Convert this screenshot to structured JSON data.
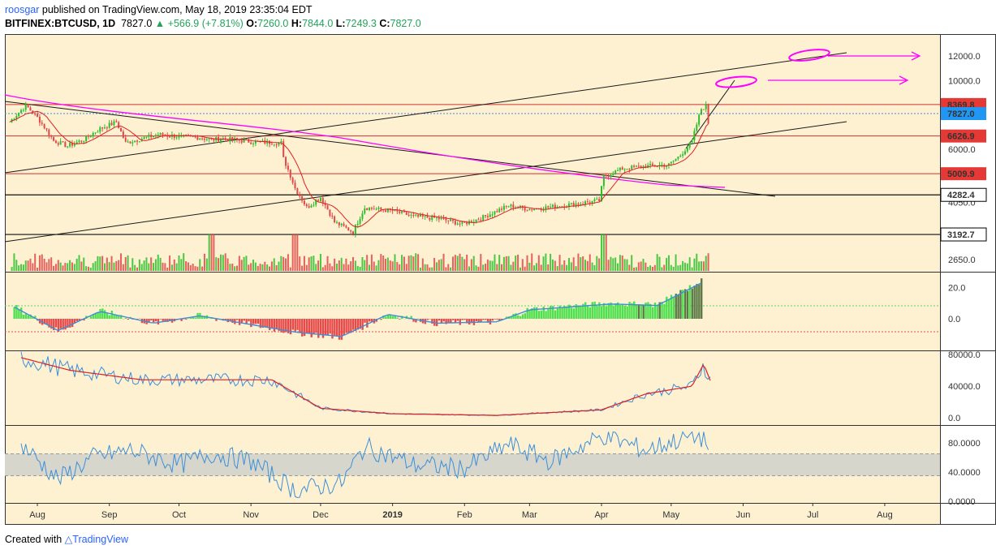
{
  "header": {
    "author": "roosgar",
    "published_text": " published on TradingView.com, May 18, 2019 23:35:04 EDT",
    "symbol": "BITFINEX:BTCUSD, 1D",
    "last": "7827.0",
    "change": "▲ +566.9 (+7.81%)",
    "o_label": "O:",
    "o_value": "7260.0",
    "h_label": "H:",
    "h_value": "7844.0",
    "l_label": "L:",
    "l_value": "7249.3",
    "c_label": "C:",
    "c_value": "7827.0"
  },
  "footer": {
    "created_with": "Created with",
    "brand": "TradingView"
  },
  "colors": {
    "bg": "#fdf1d2",
    "up": "#2bbf2b",
    "down": "#e04848",
    "sma": "#e02020",
    "ema": "#3d8fd8",
    "pink": "#ff00ff",
    "macd_pos": "#4fe04f",
    "macd_neg": "#e64a4a",
    "macd_dark": "#5a7a45",
    "rsi_band": "#d6d6cc"
  },
  "chart_data": [
    {
      "type": "candlestick",
      "panel": "price",
      "symbol": "BITFINEX:BTCUSD",
      "timeframe": "1D",
      "x_labels": [
        "Aug",
        "Sep",
        "Oct",
        "Nov",
        "Dec",
        "2019",
        "Feb",
        "Mar",
        "Apr",
        "May",
        "Jun",
        "Jul",
        "Aug"
      ],
      "y_scale": "log",
      "y_ticks": [
        "12000.0",
        "10000.0",
        "8000.0",
        "6000.0",
        "4050.0",
        "2650.0"
      ],
      "price_marks": [
        {
          "label": "8369.8",
          "style": "red"
        },
        {
          "label": "7827.0",
          "style": "blue"
        },
        {
          "label": "6626.9",
          "style": "red"
        },
        {
          "label": "5009.9",
          "style": "red"
        },
        {
          "label": "4282.4",
          "style": "black"
        },
        {
          "label": "3192.7",
          "style": "black"
        }
      ],
      "close_path": [
        [
          "2018-07-20",
          7350
        ],
        [
          "2018-07-27",
          8300
        ],
        [
          "2018-08-01",
          7600
        ],
        [
          "2018-08-08",
          6400
        ],
        [
          "2018-08-14",
          6150
        ],
        [
          "2018-08-21",
          6450
        ],
        [
          "2018-08-28",
          7000
        ],
        [
          "2018-09-04",
          7350
        ],
        [
          "2018-09-08",
          6300
        ],
        [
          "2018-09-15",
          6500
        ],
        [
          "2018-09-22",
          6700
        ],
        [
          "2018-10-01",
          6600
        ],
        [
          "2018-10-10",
          6550
        ],
        [
          "2018-10-15",
          6450
        ],
        [
          "2018-10-20",
          6500
        ],
        [
          "2018-11-01",
          6350
        ],
        [
          "2018-11-14",
          6300
        ],
        [
          "2018-11-15",
          5600
        ],
        [
          "2018-11-20",
          4500
        ],
        [
          "2018-11-25",
          3900
        ],
        [
          "2018-12-01",
          4200
        ],
        [
          "2018-12-07",
          3500
        ],
        [
          "2018-12-15",
          3250
        ],
        [
          "2018-12-20",
          3900
        ],
        [
          "2018-12-25",
          3850
        ],
        [
          "2019-01-01",
          3800
        ],
        [
          "2019-01-10",
          3650
        ],
        [
          "2019-01-20",
          3600
        ],
        [
          "2019-01-31",
          3450
        ],
        [
          "2019-02-08",
          3600
        ],
        [
          "2019-02-20",
          3950
        ],
        [
          "2019-03-01",
          3850
        ],
        [
          "2019-03-15",
          3950
        ],
        [
          "2019-03-31",
          4100
        ],
        [
          "2019-04-02",
          4900
        ],
        [
          "2019-04-10",
          5200
        ],
        [
          "2019-04-20",
          5300
        ],
        [
          "2019-04-30",
          5350
        ],
        [
          "2019-05-05",
          5750
        ],
        [
          "2019-05-10",
          6350
        ],
        [
          "2019-05-14",
          8100
        ],
        [
          "2019-05-16",
          8300
        ],
        [
          "2019-05-17",
          7300
        ],
        [
          "2019-05-18",
          7827
        ]
      ],
      "volume_spikes": [
        "2018-10-15",
        "2018-11-20",
        "2019-04-02"
      ]
    },
    {
      "type": "histogram",
      "panel": "momentum",
      "y_ticks": [
        "20.0",
        "0.0"
      ],
      "approx_values": [
        [
          "2018-07-22",
          8
        ],
        [
          "2018-08-10",
          -8
        ],
        [
          "2018-08-28",
          5
        ],
        [
          "2018-09-20",
          -3
        ],
        [
          "2018-10-10",
          2
        ],
        [
          "2018-10-25",
          -2
        ],
        [
          "2018-11-20",
          -9
        ],
        [
          "2018-12-10",
          -12
        ],
        [
          "2018-12-30",
          3
        ],
        [
          "2019-01-20",
          -3
        ],
        [
          "2019-02-15",
          -2
        ],
        [
          "2019-03-01",
          6
        ],
        [
          "2019-04-05",
          10
        ],
        [
          "2019-04-25",
          9
        ],
        [
          "2019-05-15",
          25
        ]
      ]
    },
    {
      "type": "line",
      "panel": "volume_average",
      "y_ticks": [
        "80000.0",
        "40000.0",
        "0.0"
      ],
      "series_approx": [
        [
          "2018-07-25",
          76000
        ],
        [
          "2018-08-15",
          60000
        ],
        [
          "2018-09-15",
          48000
        ],
        [
          "2018-11-10",
          48000
        ],
        [
          "2018-12-01",
          12000
        ],
        [
          "2019-01-01",
          5000
        ],
        [
          "2019-02-15",
          3000
        ],
        [
          "2019-04-01",
          10000
        ],
        [
          "2019-04-20",
          30000
        ],
        [
          "2019-05-10",
          40000
        ],
        [
          "2019-05-15",
          68000
        ],
        [
          "2019-05-18",
          46000
        ]
      ]
    },
    {
      "type": "line",
      "panel": "rsi",
      "y_ticks": [
        "80.0000",
        "40.0000",
        "0.0000"
      ],
      "band": [
        35,
        65
      ],
      "series_approx": [
        [
          "2018-07-25",
          78
        ],
        [
          "2018-08-10",
          30
        ],
        [
          "2018-08-25",
          60
        ],
        [
          "2018-09-10",
          70
        ],
        [
          "2018-10-01",
          50
        ],
        [
          "2018-10-15",
          65
        ],
        [
          "2018-11-01",
          55
        ],
        [
          "2018-11-20",
          15
        ],
        [
          "2018-12-10",
          25
        ],
        [
          "2018-12-20",
          75
        ],
        [
          "2019-01-10",
          50
        ],
        [
          "2019-02-01",
          45
        ],
        [
          "2019-02-20",
          78
        ],
        [
          "2019-03-10",
          55
        ],
        [
          "2019-04-02",
          90
        ],
        [
          "2019-04-20",
          70
        ],
        [
          "2019-05-10",
          90
        ],
        [
          "2019-05-16",
          85
        ],
        [
          "2019-05-18",
          55
        ]
      ]
    }
  ]
}
